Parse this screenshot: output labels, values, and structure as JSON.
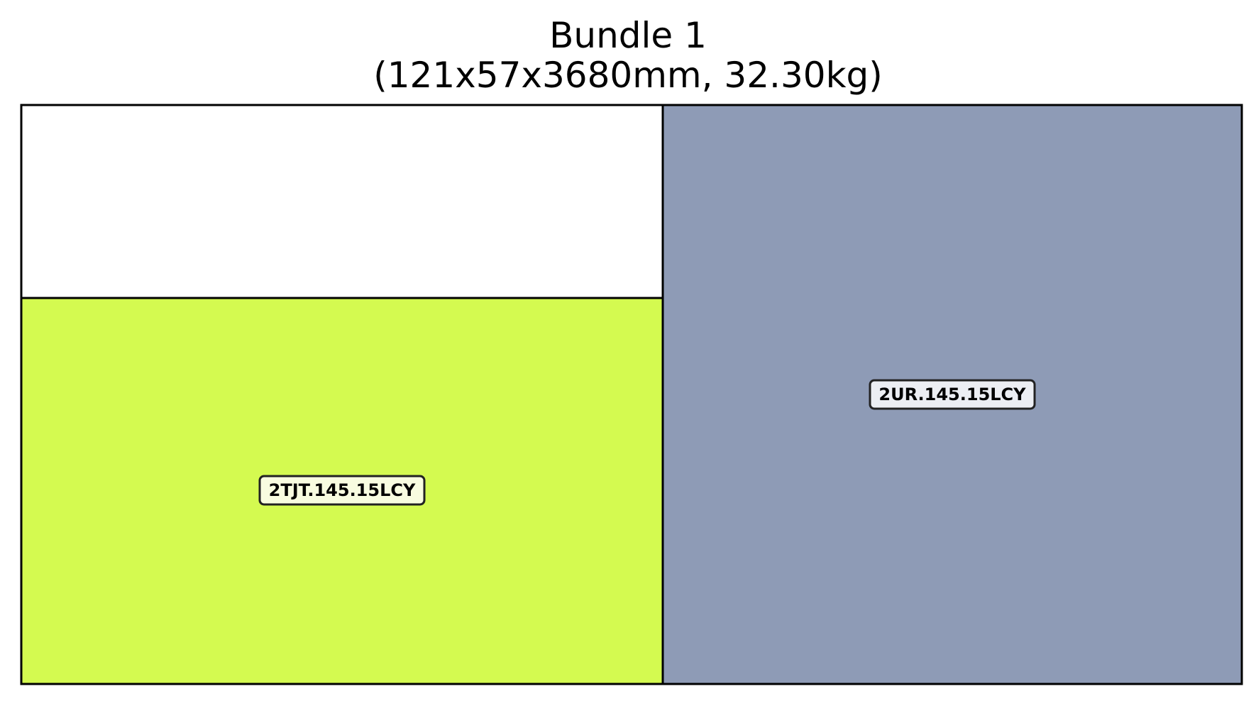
{
  "title": {
    "line1": "Bundle 1",
    "line2": "(121x57x3680mm, 32.30kg)"
  },
  "bundle": {
    "empty_fill": "#ffffff",
    "pieces": [
      {
        "label": "2TJT.145.15LCY",
        "fill": "#d4fa50",
        "label_bg": "#f8fce0"
      },
      {
        "label": "2UR.145.15LCY",
        "fill": "#8e9bb6",
        "label_bg": "#eceef3"
      }
    ]
  }
}
